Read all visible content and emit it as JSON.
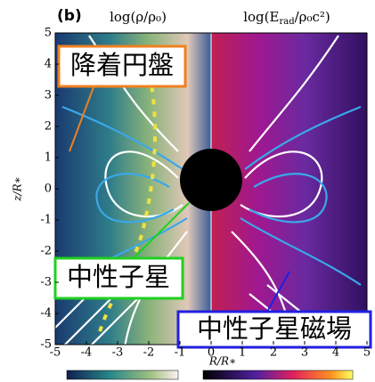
{
  "chart_data": {
    "type": "image",
    "panel_label": "(b)",
    "title_left": "log(ρ/ρ₀)",
    "title_right": [
      "log(E",
      "rad",
      "/ρ₀c²)"
    ],
    "xlabel": "R/R∗",
    "ylabel": "z/R∗",
    "xlim": [
      -5,
      5
    ],
    "ylim": [
      -5,
      5
    ],
    "xticks": [
      -5,
      -4,
      -3,
      -2,
      -1,
      0,
      1,
      2,
      3,
      4,
      5
    ],
    "yticks": [
      -5,
      -4,
      -3,
      -2,
      -1,
      0,
      1,
      2,
      3,
      4,
      5
    ],
    "annotations": [
      "降着円盤",
      "中性子星",
      "中性子星磁場"
    ]
  }
}
